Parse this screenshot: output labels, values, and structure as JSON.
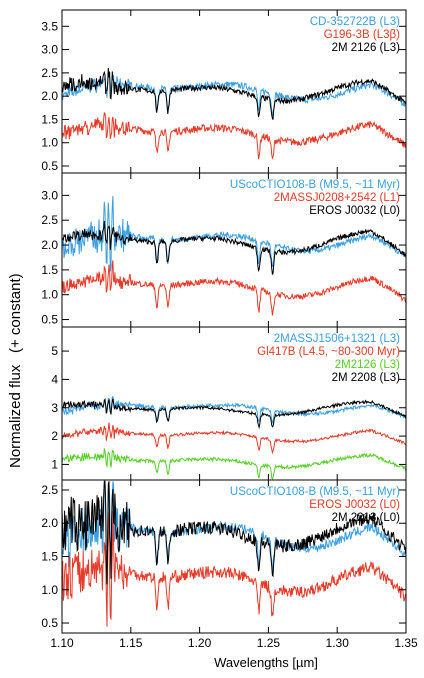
{
  "figure": {
    "xlabel": "Wavelengths [µm]",
    "ylabel_main": "Normalized flux",
    "ylabel_paren": "(+ constant)"
  },
  "chart_data": [
    {
      "type": "line",
      "xlim": [
        1.1,
        1.35
      ],
      "ylim": [
        0.35,
        3.85
      ],
      "x_ticks": [
        "1.10",
        "1.15",
        "1.20",
        "1.25",
        "1.30",
        "1.35"
      ],
      "y_ticks": [
        "0.5",
        "1.0",
        "1.5",
        "2.0",
        "2.5",
        "3.0",
        "3.5"
      ],
      "series": [
        {
          "name": "CD-352722B (L3)",
          "color": "#3b9fe0",
          "offset": 2.0,
          "noise": 0.07,
          "jump": 0.1
        },
        {
          "name": "G196-3B (L3β)",
          "color": "#e83a28",
          "offset": 1.1,
          "noise": 0.08,
          "jump": 0.12
        },
        {
          "name": "2M 2126 (L3)",
          "color": "#000000",
          "offset": 2.0,
          "noise": 0.06,
          "jump": 0.15
        }
      ],
      "legend_position": "top-right"
    },
    {
      "type": "line",
      "xlim": [
        1.1,
        1.35
      ],
      "ylim": [
        0.35,
        3.45
      ],
      "x_ticks": [],
      "y_ticks": [
        "0.5",
        "1.0",
        "1.5",
        "2.0",
        "2.5",
        "3.0"
      ],
      "series": [
        {
          "name": "UScoCTIO108-B (M9.5, ~11 Myr)",
          "color": "#3b9fe0",
          "offset": 1.95,
          "noise": 0.06,
          "jump": 0.3
        },
        {
          "name": "2MASSJ0208+2542 (L1)",
          "color": "#e83a28",
          "offset": 1.05,
          "noise": 0.06,
          "jump": 0.12
        },
        {
          "name": "EROS J0032 (L0)",
          "color": "#000000",
          "offset": 1.95,
          "noise": 0.05,
          "jump": 0.1
        }
      ],
      "legend_position": "top-right"
    },
    {
      "type": "line",
      "xlim": [
        1.1,
        1.35
      ],
      "ylim": [
        0.45,
        5.85
      ],
      "x_ticks": [],
      "y_ticks": [
        "1",
        "2",
        "3",
        "4",
        "5"
      ],
      "series": [
        {
          "name": "2MASSJ1506+1321 (L3)",
          "color": "#3b9fe0",
          "offset": 2.85,
          "noise": 0.06,
          "jump": 0.12
        },
        {
          "name": "Gl417B (L4.5, ~80-300 Myr)",
          "color": "#e83a28",
          "offset": 1.9,
          "noise": 0.05,
          "jump": 0.1
        },
        {
          "name": "2M2126 (L3)",
          "color": "#55d024",
          "offset": 1.0,
          "noise": 0.06,
          "jump": 0.12
        },
        {
          "name": "2M 2208 (L3)",
          "color": "#000000",
          "offset": 2.85,
          "noise": 0.05,
          "jump": 0.1
        }
      ],
      "legend_position": "top-right"
    },
    {
      "type": "line",
      "xlim": [
        1.1,
        1.35
      ],
      "ylim": [
        0.35,
        2.65
      ],
      "x_ticks": [
        "1.10",
        "1.15",
        "1.20",
        "1.25",
        "1.30",
        "1.35"
      ],
      "y_ticks": [
        "0.5",
        "1.0",
        "1.5",
        "2.0",
        "2.5"
      ],
      "series": [
        {
          "name": "UScoCTIO108-B (M9.5, ~11 Myr)",
          "color": "#3b9fe0",
          "offset": 1.7,
          "noise": 0.07,
          "jump": 0.35
        },
        {
          "name": "EROS J0032 (L0)",
          "color": "#e83a28",
          "offset": 1.05,
          "noise": 0.09,
          "jump": 0.3
        },
        {
          "name": "2M 2213 (L0)",
          "color": "#000000",
          "offset": 1.75,
          "noise": 0.1,
          "jump": 0.4
        }
      ],
      "legend_position": "top-right"
    }
  ]
}
